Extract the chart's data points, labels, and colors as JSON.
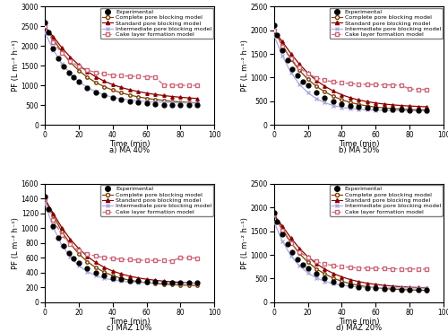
{
  "subplots": [
    {
      "label": "a) MA 40%",
      "ylim": [
        0,
        3000
      ],
      "yticks": [
        0,
        500,
        1000,
        1500,
        2000,
        2500,
        3000
      ],
      "xlim": [
        0,
        100
      ],
      "xticks": [
        0,
        20,
        40,
        60,
        80,
        100
      ],
      "exp_x": [
        0,
        2,
        5,
        8,
        11,
        14,
        17,
        20,
        25,
        30,
        35,
        40,
        45,
        50,
        55,
        60,
        65,
        70,
        75,
        80,
        85,
        90
      ],
      "exp_y": [
        2600,
        2350,
        1950,
        1680,
        1490,
        1330,
        1200,
        1090,
        940,
        830,
        745,
        680,
        635,
        600,
        570,
        548,
        530,
        515,
        505,
        500,
        497,
        493
      ],
      "complete_x": [
        0,
        5,
        10,
        15,
        20,
        25,
        30,
        35,
        40,
        45,
        50,
        55,
        60,
        65,
        70,
        75,
        80,
        85,
        90
      ],
      "complete_y": [
        2500,
        2180,
        1850,
        1590,
        1380,
        1210,
        1075,
        970,
        882,
        812,
        756,
        710,
        674,
        643,
        619,
        599,
        582,
        568,
        556
      ],
      "standard_x": [
        0,
        5,
        10,
        15,
        20,
        25,
        30,
        35,
        40,
        45,
        50,
        55,
        60,
        65,
        70,
        75,
        80,
        85,
        90
      ],
      "standard_y": [
        2500,
        2240,
        1960,
        1720,
        1520,
        1355,
        1220,
        1110,
        1020,
        950,
        892,
        844,
        804,
        771,
        744,
        720,
        700,
        683,
        668
      ],
      "intermediate_x": [
        0,
        5,
        10,
        15,
        20,
        25,
        30,
        35,
        40,
        45,
        50,
        55,
        60,
        65,
        70,
        75,
        80,
        85,
        90
      ],
      "intermediate_y": [
        2350,
        1900,
        1560,
        1300,
        1100,
        950,
        840,
        760,
        700,
        658,
        628,
        607,
        591,
        579,
        570,
        563,
        558,
        554,
        550
      ],
      "cake_x": [
        0,
        5,
        10,
        15,
        20,
        25,
        30,
        35,
        40,
        45,
        50,
        55,
        60,
        65,
        70,
        75,
        80,
        85,
        90
      ],
      "cake_y": [
        2500,
        2100,
        1820,
        1620,
        1480,
        1390,
        1330,
        1290,
        1263,
        1245,
        1234,
        1226,
        1220,
        1215,
        1012,
        1009,
        1006,
        1003,
        1000
      ]
    },
    {
      "label": "b) MA 50%",
      "ylim": [
        0,
        2500
      ],
      "yticks": [
        0,
        500,
        1000,
        1500,
        2000,
        2500
      ],
      "xlim": [
        0,
        100
      ],
      "xticks": [
        0,
        20,
        40,
        60,
        80,
        100
      ],
      "exp_x": [
        0,
        2,
        5,
        8,
        11,
        14,
        17,
        20,
        25,
        30,
        35,
        40,
        45,
        50,
        55,
        60,
        65,
        70,
        75,
        80,
        85,
        90
      ],
      "exp_y": [
        2100,
        1900,
        1580,
        1360,
        1180,
        1040,
        920,
        830,
        690,
        580,
        500,
        445,
        405,
        380,
        360,
        345,
        333,
        324,
        317,
        312,
        308,
        305
      ],
      "complete_x": [
        0,
        5,
        10,
        15,
        20,
        25,
        30,
        35,
        40,
        45,
        50,
        55,
        60,
        65,
        70,
        75,
        80,
        85,
        90
      ],
      "complete_y": [
        2000,
        1690,
        1390,
        1155,
        965,
        816,
        698,
        604,
        530,
        474,
        432,
        400,
        376,
        358,
        344,
        333,
        324,
        317,
        312
      ],
      "standard_x": [
        0,
        5,
        10,
        15,
        20,
        25,
        30,
        35,
        40,
        45,
        50,
        55,
        60,
        65,
        70,
        75,
        80,
        85,
        90
      ],
      "standard_y": [
        2000,
        1760,
        1510,
        1285,
        1095,
        940,
        816,
        716,
        636,
        574,
        526,
        490,
        462,
        440,
        423,
        409,
        398,
        389,
        382
      ],
      "intermediate_x": [
        0,
        5,
        10,
        15,
        20,
        25,
        30,
        35,
        40,
        45,
        50,
        55,
        60,
        65,
        70,
        75,
        80,
        85,
        90
      ],
      "intermediate_y": [
        1900,
        1460,
        1110,
        860,
        680,
        555,
        468,
        408,
        370,
        344,
        328,
        317,
        310,
        305,
        302,
        299,
        298,
        297,
        296
      ],
      "cake_x": [
        0,
        5,
        10,
        15,
        20,
        25,
        30,
        35,
        40,
        45,
        50,
        55,
        60,
        65,
        70,
        75,
        80,
        85,
        90
      ],
      "cake_y": [
        2000,
        1660,
        1400,
        1210,
        1080,
        996,
        944,
        910,
        888,
        872,
        862,
        854,
        849,
        845,
        842,
        840,
        757,
        750,
        745
      ]
    },
    {
      "label": "c) MAZ 10%",
      "ylim": [
        0,
        1600
      ],
      "yticks": [
        0,
        200,
        400,
        600,
        800,
        1000,
        1200,
        1400,
        1600
      ],
      "xlim": [
        0,
        100
      ],
      "xticks": [
        0,
        20,
        40,
        60,
        80,
        100
      ],
      "exp_x": [
        0,
        2,
        5,
        8,
        11,
        14,
        17,
        20,
        25,
        30,
        35,
        40,
        45,
        50,
        55,
        60,
        65,
        70,
        75,
        80,
        85,
        90
      ],
      "exp_y": [
        1430,
        1260,
        1030,
        870,
        760,
        670,
        596,
        535,
        458,
        398,
        356,
        328,
        308,
        293,
        283,
        276,
        271,
        268,
        265,
        263,
        261,
        260
      ],
      "complete_x": [
        0,
        5,
        10,
        15,
        20,
        25,
        30,
        35,
        40,
        45,
        50,
        55,
        60,
        65,
        70,
        75,
        80,
        85,
        90
      ],
      "complete_y": [
        1400,
        1170,
        958,
        790,
        654,
        549,
        468,
        406,
        359,
        323,
        297,
        278,
        263,
        251,
        243,
        236,
        231,
        227,
        223
      ],
      "standard_x": [
        0,
        5,
        10,
        15,
        20,
        25,
        30,
        35,
        40,
        45,
        50,
        55,
        60,
        65,
        70,
        75,
        80,
        85,
        90
      ],
      "standard_y": [
        1400,
        1200,
        1010,
        852,
        724,
        620,
        537,
        471,
        421,
        382,
        351,
        328,
        310,
        296,
        284,
        275,
        267,
        261,
        256
      ],
      "intermediate_x": [
        0,
        5,
        10,
        15,
        20,
        25,
        30,
        35,
        40,
        45,
        50,
        55,
        60,
        65,
        70,
        75,
        80,
        85,
        90
      ],
      "intermediate_y": [
        1340,
        1010,
        775,
        610,
        494,
        414,
        360,
        323,
        299,
        283,
        273,
        266,
        262,
        259,
        257,
        256,
        255,
        254,
        254
      ],
      "cake_x": [
        0,
        5,
        10,
        15,
        20,
        25,
        30,
        35,
        40,
        45,
        50,
        55,
        60,
        65,
        70,
        75,
        80,
        85,
        90
      ],
      "cake_y": [
        1400,
        1110,
        910,
        780,
        700,
        652,
        622,
        604,
        590,
        580,
        574,
        569,
        566,
        564,
        562,
        561,
        600,
        598,
        597
      ]
    },
    {
      "label": "d) MAZ 20%",
      "ylim": [
        0,
        2500
      ],
      "yticks": [
        0,
        500,
        1000,
        1500,
        2000,
        2500
      ],
      "xlim": [
        0,
        100
      ],
      "xticks": [
        0,
        20,
        40,
        60,
        80,
        100
      ],
      "exp_x": [
        0,
        2,
        5,
        8,
        11,
        14,
        17,
        20,
        25,
        30,
        35,
        40,
        45,
        50,
        55,
        60,
        65,
        70,
        75,
        80,
        85,
        90
      ],
      "exp_y": [
        1900,
        1700,
        1430,
        1220,
        1050,
        910,
        800,
        715,
        596,
        502,
        432,
        382,
        347,
        322,
        303,
        290,
        280,
        273,
        268,
        264,
        261,
        259
      ],
      "complete_x": [
        0,
        5,
        10,
        15,
        20,
        25,
        30,
        35,
        40,
        45,
        50,
        55,
        60,
        65,
        70,
        75,
        80,
        85,
        90
      ],
      "complete_y": [
        1850,
        1550,
        1260,
        1030,
        848,
        706,
        595,
        508,
        441,
        391,
        354,
        326,
        305,
        289,
        276,
        267,
        259,
        253,
        249
      ],
      "standard_x": [
        0,
        5,
        10,
        15,
        20,
        25,
        30,
        35,
        40,
        45,
        50,
        55,
        60,
        65,
        70,
        75,
        80,
        85,
        90
      ],
      "standard_y": [
        1850,
        1610,
        1358,
        1140,
        960,
        815,
        699,
        607,
        534,
        477,
        434,
        400,
        375,
        355,
        339,
        326,
        316,
        308,
        302
      ],
      "intermediate_x": [
        0,
        5,
        10,
        15,
        20,
        25,
        30,
        35,
        40,
        45,
        50,
        55,
        60,
        65,
        70,
        75,
        80,
        85,
        90
      ],
      "intermediate_y": [
        1700,
        1290,
        984,
        770,
        618,
        512,
        440,
        390,
        356,
        334,
        320,
        311,
        305,
        301,
        299,
        297,
        296,
        295,
        294
      ],
      "cake_x": [
        0,
        5,
        10,
        15,
        20,
        25,
        30,
        35,
        40,
        45,
        50,
        55,
        60,
        65,
        70,
        75,
        80,
        85,
        90
      ],
      "cake_y": [
        1850,
        1510,
        1250,
        1065,
        940,
        858,
        806,
        773,
        750,
        734,
        724,
        717,
        712,
        708,
        705,
        703,
        701,
        699,
        698
      ]
    }
  ],
  "legend_labels": [
    "Experimental",
    "Complete pore blocking model",
    "Standard pore blocking model",
    "Intermediate pore blocking model",
    "Cake layer formation model"
  ],
  "colors": {
    "complete": "#7B3F00",
    "standard": "#8B0000",
    "intermediate": "#AAAADD",
    "cake": "#CC6677"
  },
  "ylabel": "PF (L m⁻² h⁻¹)",
  "xlabel": "Time (min)",
  "tick_fontsize": 5.5,
  "label_fontsize": 6,
  "legend_fontsize": 4.5
}
